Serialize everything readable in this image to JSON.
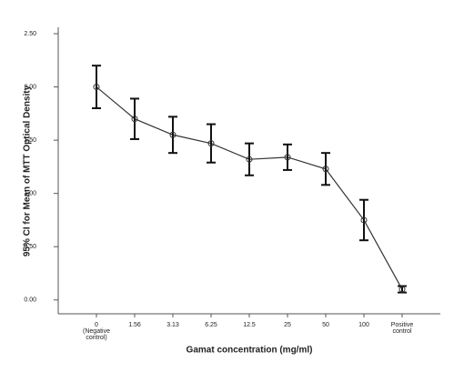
{
  "chart_data": {
    "type": "line",
    "x_label": "Gamat concentration (mg/ml)",
    "y_label": "95% CI for Mean of MTT Optical Density",
    "categories": [
      "0 (Negative control)",
      "1.56",
      "3.13",
      "6.25",
      "12.5",
      "25",
      "50",
      "100",
      "Positive control"
    ],
    "values": [
      2.0,
      1.7,
      1.55,
      1.47,
      1.32,
      1.34,
      1.23,
      0.75,
      0.1
    ],
    "error": [
      0.2,
      0.19,
      0.17,
      0.18,
      0.15,
      0.12,
      0.15,
      0.19,
      0.03
    ],
    "color": "#333333",
    "ylim": [
      -0.13,
      2.56
    ],
    "yticks": [
      {
        "value": 0,
        "label": "0.00"
      },
      {
        "value": 0.5,
        "label": "0.50"
      },
      {
        "value": 1,
        "label": "1.00"
      },
      {
        "value": 1.5,
        "label": "1.50"
      },
      {
        "value": 2,
        "label": "2.00"
      },
      {
        "value": 2.5,
        "label": "2.50"
      }
    ]
  }
}
